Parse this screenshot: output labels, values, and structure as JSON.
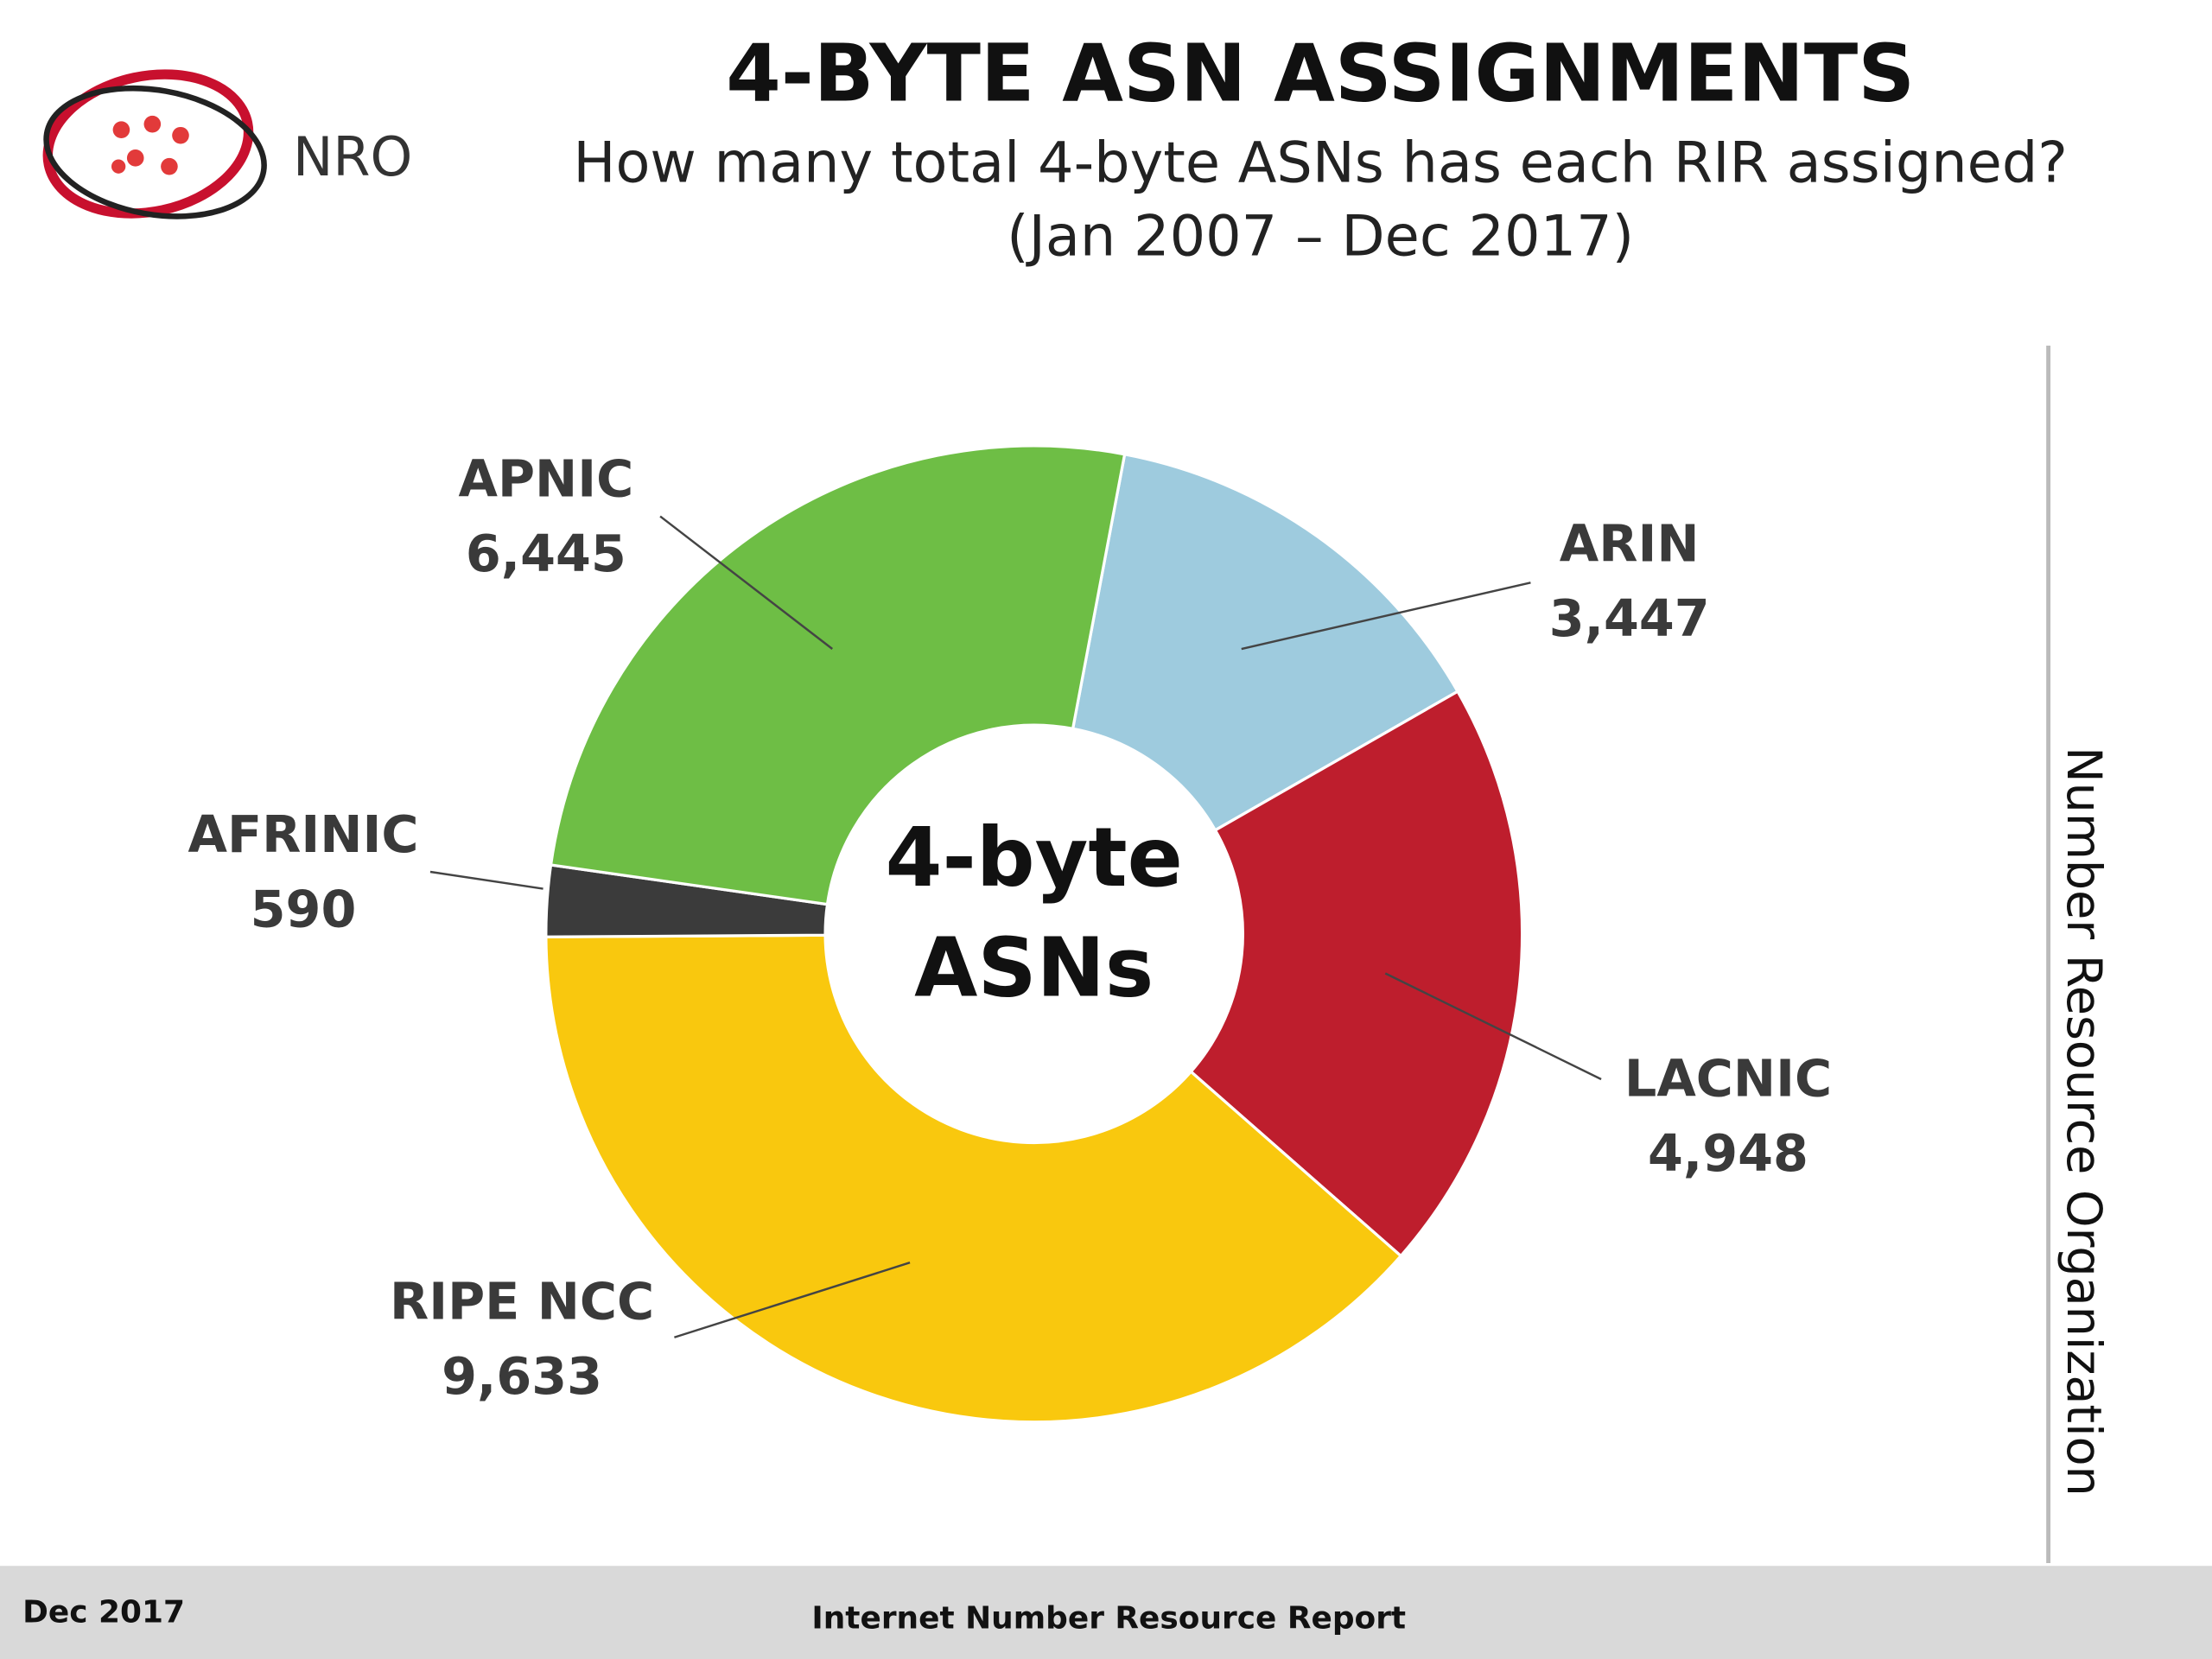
{
  "logo": {
    "text": "NRO"
  },
  "header": {
    "title": "4-BYTE ASN ASSIGNMENTS",
    "subtitle": "How many total 4-byte ASNs has each RIR assigned?",
    "period": "(Jan 2007 – Dec 2017)"
  },
  "chart_data": {
    "type": "donut",
    "center_label": [
      "4-byte",
      "ASNs"
    ],
    "categories": [
      "ARIN",
      "LACNIC",
      "RIPE NCC",
      "AFRINIC",
      "APNIC"
    ],
    "values": [
      3447,
      4948,
      9633,
      590,
      6445
    ],
    "value_labels": [
      "3,447",
      "4,948",
      "9,633",
      "590",
      "6,445"
    ],
    "colors": [
      "#9ecbde",
      "#be1e2d",
      "#f9c80e",
      "#3b3b3b",
      "#6ebe45"
    ]
  },
  "sidebar": {
    "text": "Number Resource Organization"
  },
  "footer": {
    "date": "Dec 2017",
    "report": "Internet Number Resource Report"
  }
}
